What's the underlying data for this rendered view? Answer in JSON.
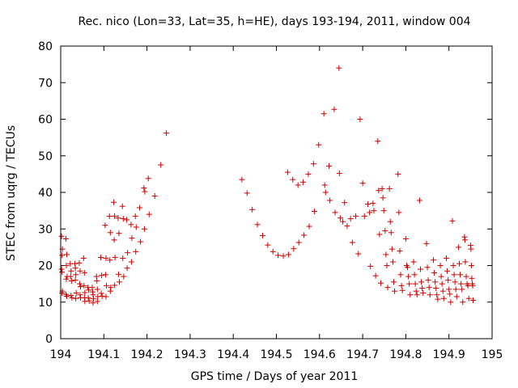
{
  "chart_data": {
    "type": "scatter",
    "title": "Rec. nico (Lon=33, Lat=35, h=HE), days 193-194, 2011, window 004",
    "xlabel": "GPS time / Days of year 2011",
    "ylabel": "STEC from uqrg / TECUs",
    "xlim": [
      194,
      195
    ],
    "ylim": [
      0,
      80
    ],
    "x_ticks": [
      194,
      194.1,
      194.2,
      194.3,
      194.4,
      194.5,
      194.6,
      194.7,
      194.8,
      194.9,
      195
    ],
    "x_tick_labels": [
      "194",
      "194.1",
      "194.2",
      "194.3",
      "194.4",
      "194.5",
      "194.6",
      "194.7",
      "194.8",
      "194.9",
      "195"
    ],
    "y_ticks": [
      0,
      10,
      20,
      30,
      40,
      50,
      60,
      70,
      80
    ],
    "y_tick_labels": [
      "0",
      "10",
      "20",
      "30",
      "40",
      "50",
      "60",
      "70",
      "80"
    ],
    "grid": false,
    "marker": "+",
    "marker_color": "#cc0000",
    "series": [
      {
        "name": "STEC",
        "points": [
          [
            194.002,
            28.0
          ],
          [
            194.004,
            24.5
          ],
          [
            194.003,
            22.8
          ],
          [
            194.002,
            19.0
          ],
          [
            194.003,
            18.2
          ],
          [
            194.004,
            13.0
          ],
          [
            194.003,
            12.5
          ],
          [
            194.012,
            27.3
          ],
          [
            194.014,
            23.0
          ],
          [
            194.013,
            20.0
          ],
          [
            194.015,
            17.0
          ],
          [
            194.013,
            16.3
          ],
          [
            194.012,
            12.1
          ],
          [
            194.014,
            11.6
          ],
          [
            194.022,
            20.5
          ],
          [
            194.024,
            18.5
          ],
          [
            194.023,
            17.0
          ],
          [
            194.025,
            15.8
          ],
          [
            194.024,
            11.8
          ],
          [
            194.026,
            11.2
          ],
          [
            194.033,
            20.5
          ],
          [
            194.034,
            19.3
          ],
          [
            194.035,
            17.5
          ],
          [
            194.034,
            16.0
          ],
          [
            194.036,
            12.5
          ],
          [
            194.035,
            11.0
          ],
          [
            194.043,
            20.7
          ],
          [
            194.045,
            18.5
          ],
          [
            194.044,
            15.0
          ],
          [
            194.046,
            14.2
          ],
          [
            194.045,
            12.0
          ],
          [
            194.046,
            11.2
          ],
          [
            194.053,
            22.0
          ],
          [
            194.055,
            18.0
          ],
          [
            194.054,
            14.5
          ],
          [
            194.056,
            12.6
          ],
          [
            194.055,
            11.2
          ],
          [
            194.056,
            10.2
          ],
          [
            194.063,
            14.0
          ],
          [
            194.065,
            13.3
          ],
          [
            194.064,
            11.2
          ],
          [
            194.066,
            10.3
          ],
          [
            194.073,
            14.0
          ],
          [
            194.074,
            12.8
          ],
          [
            194.075,
            12.0
          ],
          [
            194.076,
            10.9
          ],
          [
            194.075,
            9.8
          ],
          [
            194.083,
            17.0
          ],
          [
            194.084,
            15.8
          ],
          [
            194.085,
            13.5
          ],
          [
            194.086,
            11.5
          ],
          [
            194.085,
            10.2
          ],
          [
            194.093,
            22.2
          ],
          [
            194.095,
            17.3
          ],
          [
            194.094,
            12.4
          ],
          [
            194.096,
            11.6
          ],
          [
            194.103,
            31.0
          ],
          [
            194.105,
            22.0
          ],
          [
            194.104,
            17.5
          ],
          [
            194.106,
            14.5
          ],
          [
            194.105,
            11.5
          ],
          [
            194.113,
            33.5
          ],
          [
            194.115,
            29.0
          ],
          [
            194.114,
            21.5
          ],
          [
            194.116,
            14.0
          ],
          [
            194.115,
            13.0
          ],
          [
            194.123,
            37.3
          ],
          [
            194.125,
            33.5
          ],
          [
            194.124,
            27.0
          ],
          [
            194.126,
            22.2
          ],
          [
            194.125,
            14.6
          ],
          [
            194.133,
            33.0
          ],
          [
            194.135,
            28.8
          ],
          [
            194.134,
            17.6
          ],
          [
            194.136,
            15.5
          ],
          [
            194.143,
            36.2
          ],
          [
            194.145,
            32.8
          ],
          [
            194.144,
            22.0
          ],
          [
            194.146,
            17.0
          ],
          [
            194.153,
            32.5
          ],
          [
            194.155,
            23.5
          ],
          [
            194.154,
            19.3
          ],
          [
            194.163,
            31.2
          ],
          [
            194.165,
            27.5
          ],
          [
            194.164,
            21.0
          ],
          [
            194.173,
            33.5
          ],
          [
            194.175,
            30.5
          ],
          [
            194.174,
            23.8
          ],
          [
            194.183,
            35.8
          ],
          [
            194.185,
            26.5
          ],
          [
            194.193,
            41.2
          ],
          [
            194.195,
            40.2
          ],
          [
            194.194,
            30.0
          ],
          [
            194.203,
            43.8
          ],
          [
            194.205,
            34.0
          ],
          [
            194.218,
            39.0
          ],
          [
            194.232,
            47.5
          ],
          [
            194.245,
            56.2
          ],
          [
            194.42,
            43.5
          ],
          [
            194.432,
            39.8
          ],
          [
            194.444,
            35.3
          ],
          [
            194.456,
            31.2
          ],
          [
            194.468,
            28.2
          ],
          [
            194.48,
            25.6
          ],
          [
            194.492,
            23.8
          ],
          [
            194.504,
            22.8
          ],
          [
            194.516,
            22.6
          ],
          [
            194.528,
            23.0
          ],
          [
            194.54,
            24.6
          ],
          [
            194.552,
            26.3
          ],
          [
            194.564,
            28.3
          ],
          [
            194.576,
            30.7
          ],
          [
            194.588,
            34.8
          ],
          [
            194.526,
            45.5
          ],
          [
            194.538,
            43.5
          ],
          [
            194.55,
            42.0
          ],
          [
            194.562,
            42.8
          ],
          [
            194.574,
            45.0
          ],
          [
            194.586,
            47.8
          ],
          [
            194.598,
            53.0
          ],
          [
            194.61,
            61.5
          ],
          [
            194.622,
            47.2
          ],
          [
            194.634,
            62.7
          ],
          [
            194.645,
            74.0
          ],
          [
            194.658,
            37.2
          ],
          [
            194.612,
            42.0
          ],
          [
            194.614,
            40.0
          ],
          [
            194.624,
            37.8
          ],
          [
            194.636,
            34.5
          ],
          [
            194.646,
            45.2
          ],
          [
            194.648,
            33.0
          ],
          [
            194.654,
            32.0
          ],
          [
            194.664,
            30.8
          ],
          [
            194.672,
            32.8
          ],
          [
            194.676,
            26.3
          ],
          [
            194.684,
            33.5
          ],
          [
            194.69,
            23.2
          ],
          [
            194.694,
            60.0
          ],
          [
            194.7,
            42.5
          ],
          [
            194.704,
            33.5
          ],
          [
            194.712,
            36.8
          ],
          [
            194.716,
            34.5
          ],
          [
            194.718,
            19.8
          ],
          [
            194.724,
            37.0
          ],
          [
            194.726,
            35.0
          ],
          [
            194.73,
            17.2
          ],
          [
            194.735,
            54.0
          ],
          [
            194.737,
            40.5
          ],
          [
            194.739,
            28.5
          ],
          [
            194.742,
            15.2
          ],
          [
            194.745,
            41.0
          ],
          [
            194.747,
            38.5
          ],
          [
            194.749,
            35.0
          ],
          [
            194.752,
            29.5
          ],
          [
            194.754,
            23.0
          ],
          [
            194.756,
            20.0
          ],
          [
            194.758,
            14.0
          ],
          [
            194.762,
            41.0
          ],
          [
            194.764,
            32.0
          ],
          [
            194.766,
            29.0
          ],
          [
            194.768,
            24.5
          ],
          [
            194.77,
            21.0
          ],
          [
            194.772,
            15.5
          ],
          [
            194.774,
            13.0
          ],
          [
            194.782,
            45.0
          ],
          [
            194.784,
            34.5
          ],
          [
            194.786,
            24.0
          ],
          [
            194.788,
            17.5
          ],
          [
            194.79,
            14.5
          ],
          [
            194.792,
            13.2
          ],
          [
            194.8,
            27.3
          ],
          [
            194.802,
            20.0
          ],
          [
            194.804,
            19.5
          ],
          [
            194.806,
            17.0
          ],
          [
            194.808,
            15.0
          ],
          [
            194.81,
            12.0
          ],
          [
            194.818,
            21.0
          ],
          [
            194.82,
            17.5
          ],
          [
            194.822,
            15.0
          ],
          [
            194.824,
            13.0
          ],
          [
            194.826,
            12.0
          ],
          [
            194.832,
            37.8
          ],
          [
            194.834,
            19.0
          ],
          [
            194.836,
            15.5
          ],
          [
            194.838,
            13.8
          ],
          [
            194.84,
            12.5
          ],
          [
            194.848,
            26.0
          ],
          [
            194.85,
            19.5
          ],
          [
            194.852,
            16.0
          ],
          [
            194.854,
            14.0
          ],
          [
            194.856,
            12.0
          ],
          [
            194.864,
            21.5
          ],
          [
            194.866,
            18.0
          ],
          [
            194.868,
            15.5
          ],
          [
            194.87,
            13.8
          ],
          [
            194.872,
            12.0
          ],
          [
            194.874,
            10.8
          ],
          [
            194.88,
            20.0
          ],
          [
            194.882,
            17.0
          ],
          [
            194.884,
            15.0
          ],
          [
            194.886,
            13.0
          ],
          [
            194.888,
            11.0
          ],
          [
            194.894,
            22.0
          ],
          [
            194.896,
            18.5
          ],
          [
            194.898,
            16.0
          ],
          [
            194.9,
            13.5
          ],
          [
            194.902,
            12.2
          ],
          [
            194.904,
            10.0
          ],
          [
            194.908,
            32.2
          ],
          [
            194.91,
            20.0
          ],
          [
            194.912,
            17.5
          ],
          [
            194.914,
            15.5
          ],
          [
            194.916,
            13.5
          ],
          [
            194.918,
            11.5
          ],
          [
            194.922,
            25.0
          ],
          [
            194.924,
            20.5
          ],
          [
            194.926,
            17.5
          ],
          [
            194.928,
            15.0
          ],
          [
            194.93,
            13.5
          ],
          [
            194.932,
            10.0
          ],
          [
            194.936,
            27.8
          ],
          [
            194.937,
            27.0
          ],
          [
            194.938,
            21.0
          ],
          [
            194.94,
            17.0
          ],
          [
            194.942,
            15.0
          ],
          [
            194.944,
            14.5
          ],
          [
            194.946,
            11.0
          ],
          [
            194.95,
            25.5
          ],
          [
            194.951,
            24.5
          ],
          [
            194.952,
            20.0
          ],
          [
            194.953,
            16.5
          ],
          [
            194.954,
            15.0
          ],
          [
            194.955,
            14.5
          ],
          [
            194.956,
            10.5
          ]
        ]
      }
    ]
  }
}
